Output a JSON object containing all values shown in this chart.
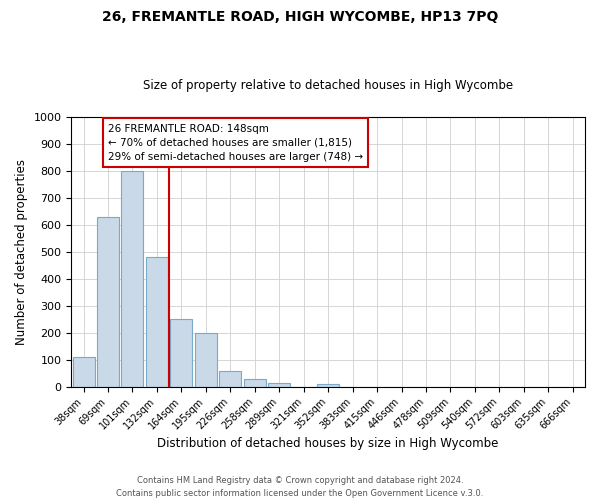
{
  "title": "26, FREMANTLE ROAD, HIGH WYCOMBE, HP13 7PQ",
  "subtitle": "Size of property relative to detached houses in High Wycombe",
  "xlabel": "Distribution of detached houses by size in High Wycombe",
  "ylabel": "Number of detached properties",
  "bar_labels": [
    "38sqm",
    "69sqm",
    "101sqm",
    "132sqm",
    "164sqm",
    "195sqm",
    "226sqm",
    "258sqm",
    "289sqm",
    "321sqm",
    "352sqm",
    "383sqm",
    "415sqm",
    "446sqm",
    "478sqm",
    "509sqm",
    "540sqm",
    "572sqm",
    "603sqm",
    "635sqm",
    "666sqm"
  ],
  "bar_values": [
    110,
    630,
    800,
    480,
    250,
    200,
    60,
    30,
    15,
    0,
    10,
    0,
    0,
    0,
    0,
    0,
    0,
    0,
    0,
    0,
    0
  ],
  "bar_color": "#c9d9e8",
  "bar_edge_color": "#7aaac8",
  "property_line_color": "#cc0000",
  "property_line_x": 3.5,
  "ylim": [
    0,
    1000
  ],
  "yticks": [
    0,
    100,
    200,
    300,
    400,
    500,
    600,
    700,
    800,
    900,
    1000
  ],
  "annotation_title": "26 FREMANTLE ROAD: 148sqm",
  "annotation_line1": "← 70% of detached houses are smaller (1,815)",
  "annotation_line2": "29% of semi-detached houses are larger (748) →",
  "annotation_box_color": "#ffffff",
  "annotation_box_edge_color": "#cc0000",
  "footer1": "Contains HM Land Registry data © Crown copyright and database right 2024.",
  "footer2": "Contains public sector information licensed under the Open Government Licence v.3.0.",
  "background_color": "#ffffff",
  "grid_color": "#d0d0d0"
}
